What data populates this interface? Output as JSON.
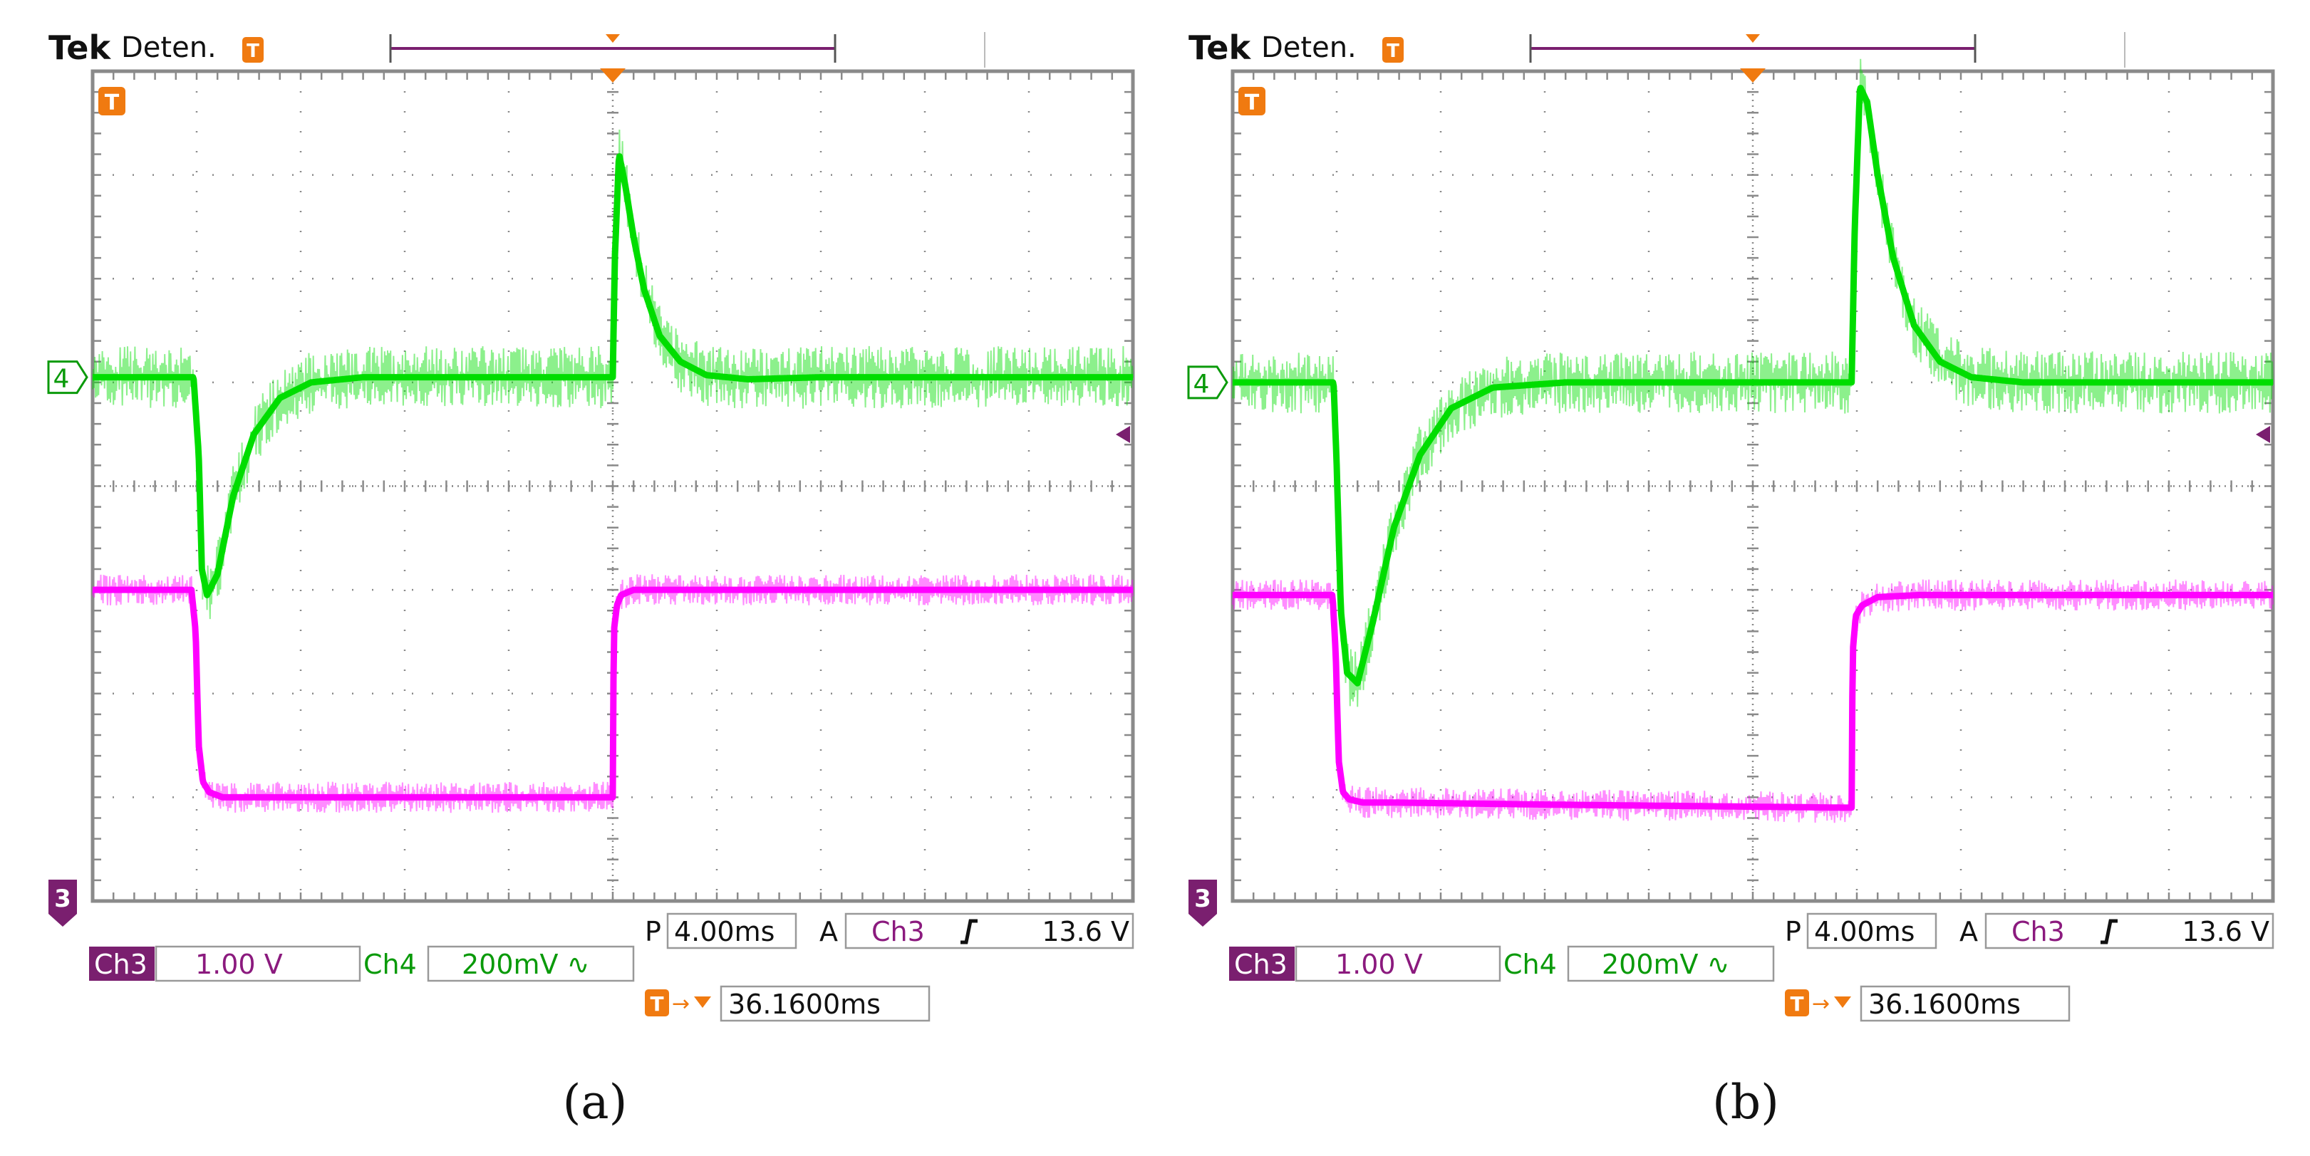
{
  "colors": {
    "ch3": "#ff00ff",
    "ch3_label_bg": "#7a1f6f",
    "ch3_text": "#8b1a7e",
    "ch4": "#00dd00",
    "ch4_text": "#0a9a0a",
    "trigger": "#f07a10",
    "grid": "#8a8a8a",
    "frame": "#8a8a8a"
  },
  "chart_data": [
    {
      "type": "line",
      "caption": "(a)",
      "header": {
        "brand": "Tek",
        "status": "Deten."
      },
      "x_divisions": 10,
      "y_divisions": 8,
      "ch4_marker": "4",
      "ch3_marker": "3",
      "timebase": {
        "prefix": "P",
        "value": "4.00ms"
      },
      "trigger": {
        "mode": "A",
        "source": "Ch3",
        "level": "13.6 V"
      },
      "ch3_scale": {
        "label": "Ch3",
        "value": "1.00 V"
      },
      "ch4_scale": {
        "label": "Ch4",
        "value": "200mV ∿"
      },
      "trigger_pos": {
        "value": "36.1600ms"
      },
      "series": [
        {
          "name": "Ch4",
          "x_div": [
            0,
            0.97,
            1.02,
            1.05,
            1.1,
            1.2,
            1.35,
            1.55,
            1.8,
            2.1,
            2.6,
            3.5,
            4.5,
            5.0,
            5.02,
            5.06,
            5.12,
            5.2,
            5.3,
            5.45,
            5.65,
            5.9,
            6.3,
            7.0,
            8.5,
            10
          ],
          "y_div": [
            5.05,
            5.05,
            4.3,
            3.2,
            2.95,
            3.15,
            3.9,
            4.5,
            4.85,
            5.0,
            5.05,
            5.05,
            5.05,
            5.05,
            6.2,
            7.2,
            6.9,
            6.4,
            5.9,
            5.45,
            5.2,
            5.07,
            5.03,
            5.05,
            5.05,
            5.05
          ],
          "noise_div": 0.3
        },
        {
          "name": "Ch3",
          "x_div": [
            0,
            0.95,
            0.99,
            1.02,
            1.06,
            1.12,
            1.25,
            1.5,
            3.0,
            4.5,
            5.0,
            5.01,
            5.04,
            5.08,
            5.2,
            5.5,
            10
          ],
          "y_div": [
            3.0,
            3.0,
            2.6,
            1.5,
            1.15,
            1.05,
            1.0,
            1.0,
            1.0,
            1.0,
            1.0,
            2.6,
            2.85,
            2.95,
            3.0,
            3.0,
            3.0
          ],
          "noise_div": 0.15
        }
      ]
    },
    {
      "type": "line",
      "caption": "(b)",
      "header": {
        "brand": "Tek",
        "status": "Deten."
      },
      "x_divisions": 10,
      "y_divisions": 8,
      "ch4_marker": "4",
      "ch3_marker": "3",
      "timebase": {
        "prefix": "P",
        "value": "4.00ms"
      },
      "trigger": {
        "mode": "A",
        "source": "Ch3",
        "level": "13.6 V"
      },
      "ch3_scale": {
        "label": "Ch3",
        "value": "1.00 V"
      },
      "ch4_scale": {
        "label": "Ch4",
        "value": "200mV ∿"
      },
      "trigger_pos": {
        "value": "36.1600ms"
      },
      "series": [
        {
          "name": "Ch4",
          "x_div": [
            0,
            0.97,
            1.0,
            1.04,
            1.1,
            1.2,
            1.35,
            1.55,
            1.8,
            2.1,
            2.5,
            3.2,
            4.5,
            5.95,
            5.98,
            6.03,
            6.1,
            6.2,
            6.35,
            6.55,
            6.8,
            7.1,
            7.6,
            8.5,
            10
          ],
          "y_div": [
            5.0,
            5.0,
            4.2,
            2.8,
            2.2,
            2.1,
            2.7,
            3.6,
            4.3,
            4.75,
            4.95,
            5.0,
            5.0,
            5.0,
            6.5,
            7.85,
            7.7,
            7.0,
            6.2,
            5.55,
            5.2,
            5.05,
            5.0,
            5.0,
            5.0
          ],
          "noise_div": 0.3
        },
        {
          "name": "Ch3",
          "x_div": [
            0,
            0.96,
            0.99,
            1.02,
            1.06,
            1.12,
            1.25,
            1.5,
            3.0,
            5.9,
            5.95,
            5.96,
            5.99,
            6.05,
            6.2,
            6.6,
            10
          ],
          "y_div": [
            2.95,
            2.95,
            2.4,
            1.35,
            1.05,
            0.98,
            0.95,
            0.95,
            0.93,
            0.9,
            0.9,
            2.4,
            2.75,
            2.85,
            2.93,
            2.95,
            2.95
          ],
          "noise_div": 0.15
        }
      ]
    }
  ]
}
